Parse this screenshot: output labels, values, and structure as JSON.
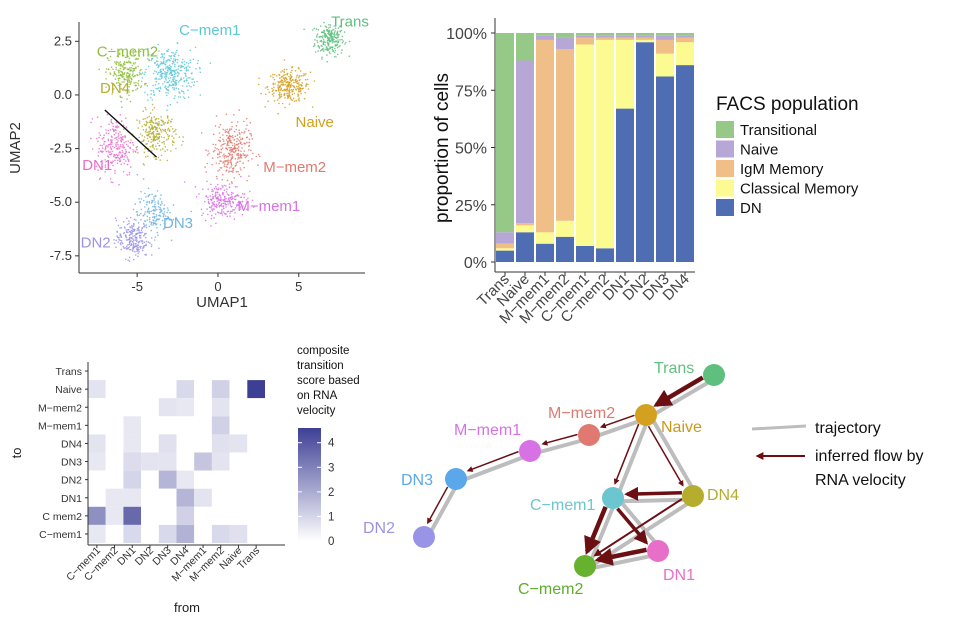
{
  "palette": {
    "transitional": "#96c987",
    "naive": "#b6a7d6",
    "igm_memory": "#f0bf87",
    "classical_memory": "#fbfb91",
    "dn": "#4e6db3",
    "arrow_dark": "#6b0f12",
    "trajectory_gray": "#bdbdbd",
    "heat_low": "#ffffff",
    "heat_high": "#3d3f95"
  },
  "chart_data": [
    {
      "type": "scatter",
      "xlabel": "UMAP1",
      "ylabel": "UMAP2",
      "xticks": [
        "-5",
        "0",
        "5"
      ],
      "yticks": [
        "2.5",
        "0.0",
        "-2.5",
        "-5.0",
        "-7.5"
      ],
      "xlim": [
        -8.6,
        9.1
      ],
      "ylim": [
        -8.3,
        3.4
      ],
      "clusters": [
        {
          "name": "Trans",
          "color": "#5fbf7f",
          "center": [
            6.9,
            2.6
          ],
          "spread": [
            0.9,
            0.8
          ],
          "n": 230
        },
        {
          "name": "Naive",
          "color": "#d4a020",
          "center": [
            4.4,
            0.4
          ],
          "spread": [
            1.3,
            0.75
          ],
          "n": 260
        },
        {
          "name": "C−mem1",
          "color": "#5bc8d8",
          "center": [
            -3.0,
            1.0
          ],
          "spread": [
            1.6,
            1.2
          ],
          "n": 330
        },
        {
          "name": "C−mem2",
          "color": "#8fbf3a",
          "center": [
            -5.7,
            1.0
          ],
          "spread": [
            1.1,
            1.0
          ],
          "n": 220
        },
        {
          "name": "DN4",
          "color": "#b5ad2e",
          "center": [
            -3.8,
            -1.8
          ],
          "spread": [
            1.2,
            1.0
          ],
          "n": 240
        },
        {
          "name": "M−mem2",
          "color": "#e07a70",
          "center": [
            0.8,
            -2.6
          ],
          "spread": [
            1.2,
            1.3
          ],
          "n": 290
        },
        {
          "name": "DN1",
          "color": "#e86fc9",
          "center": [
            -6.3,
            -2.4
          ],
          "spread": [
            1.2,
            1.4
          ],
          "n": 230
        },
        {
          "name": "M−mem1",
          "color": "#d772e5",
          "center": [
            0.3,
            -4.9
          ],
          "spread": [
            1.4,
            0.8
          ],
          "n": 230
        },
        {
          "name": "DN3",
          "color": "#6fb3e0",
          "center": [
            -4.0,
            -5.5
          ],
          "spread": [
            1.0,
            1.0
          ],
          "n": 160
        },
        {
          "name": "DN2",
          "color": "#9a94e6",
          "center": [
            -5.3,
            -6.7
          ],
          "spread": [
            1.0,
            0.9
          ],
          "n": 230
        }
      ],
      "labels": [
        {
          "text": "Trans",
          "color": "#5fbf7f",
          "at": [
            7.0,
            3.2
          ]
        },
        {
          "text": "C−mem2",
          "color": "#8fbf3a",
          "at": [
            -7.5,
            1.8
          ]
        },
        {
          "text": "C−mem1",
          "color": "#5bc8d8",
          "at": [
            -2.4,
            2.8
          ]
        },
        {
          "text": "DN4",
          "color": "#b5ad2e",
          "at": [
            -7.3,
            0.1
          ]
        },
        {
          "text": "Naive",
          "color": "#d4a020",
          "at": [
            4.8,
            -1.5
          ]
        },
        {
          "text": "DN1",
          "color": "#e86fc9",
          "at": [
            -8.4,
            -3.5
          ]
        },
        {
          "text": "M−mem2",
          "color": "#e07a70",
          "at": [
            2.8,
            -3.6
          ]
        },
        {
          "text": "M−mem1",
          "color": "#d772e5",
          "at": [
            1.2,
            -5.4
          ]
        },
        {
          "text": "DN3",
          "color": "#6fb3e0",
          "at": [
            -3.4,
            -6.2
          ]
        },
        {
          "text": "DN2",
          "color": "#9a94e6",
          "at": [
            -8.5,
            -7.1
          ]
        }
      ],
      "line": {
        "from": [
          -7.0,
          -0.7
        ],
        "to": [
          -3.8,
          -2.9
        ]
      }
    },
    {
      "type": "bar",
      "stacked": true,
      "ylabel": "proportion of cells",
      "yticks": [
        "0%",
        "25%",
        "50%",
        "75%",
        "100%"
      ],
      "ylim": [
        0,
        100
      ],
      "categories": [
        "Trans",
        "Naive",
        "M−mem1",
        "M−mem2",
        "C−mem1",
        "C−mem2",
        "DN1",
        "DN2",
        "DN3",
        "DN4"
      ],
      "legend_title": "FACS population",
      "legend_position": "right",
      "series": [
        {
          "name": "DN",
          "key": "dn",
          "values": [
            5,
            13,
            8,
            11,
            7,
            6,
            67,
            96,
            81,
            86
          ]
        },
        {
          "name": "Classical  Memory",
          "key": "classical_memory",
          "values": [
            1,
            3,
            5,
            7,
            88,
            91,
            30,
            1,
            10,
            10
          ]
        },
        {
          "name": "IgM  Memory",
          "key": "igm_memory",
          "values": [
            2,
            1,
            84,
            75,
            3,
            1,
            1,
            1,
            6,
            2
          ]
        },
        {
          "name": "Naive",
          "key": "naive",
          "values": [
            5,
            71,
            2,
            5,
            1,
            1,
            1,
            1,
            2,
            1
          ]
        },
        {
          "name": "Transitional",
          "key": "transitional",
          "values": [
            87,
            12,
            1,
            2,
            1,
            1,
            1,
            1,
            1,
            1
          ]
        }
      ],
      "legend_order": [
        "Transitional",
        "Naive",
        "IgM  Memory",
        "Classical  Memory",
        "DN"
      ]
    },
    {
      "type": "heatmap",
      "xlabel": "from",
      "ylabel": "to",
      "x": [
        "C−mem1",
        "C−mem2",
        "DN1",
        "DN2",
        "DN3",
        "DN4",
        "M−mem1",
        "M−mem2",
        "Naive",
        "Trans"
      ],
      "y": [
        "Trans",
        "Naive",
        "M−mem2",
        "M−mem1",
        "DN4",
        "DN3",
        "DN2",
        "DN1",
        "C  mem2",
        "C−mem1"
      ],
      "values": [
        [
          0,
          0,
          0,
          0,
          0,
          0,
          0,
          0,
          0,
          0
        ],
        [
          0.3,
          0,
          0,
          0,
          0,
          0.6,
          0,
          0.8,
          0,
          4.6
        ],
        [
          0,
          0,
          0,
          0,
          0.3,
          0.2,
          0,
          0.3,
          0,
          0
        ],
        [
          0,
          0,
          0.2,
          0,
          0,
          0,
          0,
          0.8,
          0,
          0
        ],
        [
          0.3,
          0,
          0.2,
          0,
          0.4,
          0,
          0,
          0.4,
          0.3,
          0
        ],
        [
          0.2,
          0,
          0.5,
          0.3,
          0.3,
          0,
          1.1,
          0.3,
          0,
          0
        ],
        [
          0,
          0,
          0.7,
          0,
          1.5,
          0.2,
          0,
          0,
          0,
          0
        ],
        [
          0,
          0.2,
          0.2,
          0,
          0,
          1.5,
          0.3,
          0,
          0,
          0
        ],
        [
          2.5,
          0.2,
          3.5,
          0,
          0,
          0.8,
          0,
          0,
          0,
          0
        ],
        [
          0.2,
          0,
          0.6,
          0,
          0.6,
          1.6,
          0,
          0.6,
          0.4,
          0
        ]
      ],
      "colorbar_title": [
        "composite",
        "transition",
        "score based",
        "on RNA",
        "velocity"
      ],
      "colorbar_ticks": [
        "4",
        "3",
        "2",
        "1",
        "0"
      ],
      "zlim": [
        0,
        4.6
      ]
    },
    {
      "type": "network",
      "nodes": [
        {
          "name": "Trans",
          "color": "#5fbf7f",
          "label_color": "#5fbf7f"
        },
        {
          "name": "Naive",
          "color": "#d4a020",
          "label_color": "#c99a1a"
        },
        {
          "name": "M−mem2",
          "color": "#e07a70",
          "label_color": "#e07a70"
        },
        {
          "name": "M−mem1",
          "color": "#d772e5",
          "label_color": "#d772e5"
        },
        {
          "name": "DN3",
          "color": "#5aa8ea",
          "label_color": "#5aa8ea"
        },
        {
          "name": "DN2",
          "color": "#9a94e6",
          "label_color": "#9a94e6"
        },
        {
          "name": "C−mem1",
          "color": "#6cc6cf",
          "label_color": "#6cc6cf"
        },
        {
          "name": "DN4",
          "color": "#b5ad2e",
          "label_color": "#b5ad2e"
        },
        {
          "name": "C−mem2",
          "color": "#66b22e",
          "label_color": "#5fae2a"
        },
        {
          "name": "DN1",
          "color": "#e86fc9",
          "label_color": "#e86fc9"
        }
      ],
      "edges": [
        {
          "from": "Trans",
          "to": "Naive",
          "weight": 4.5
        },
        {
          "from": "Naive",
          "to": "M−mem2",
          "weight": 1.5
        },
        {
          "from": "M−mem2",
          "to": "M−mem1",
          "weight": 1.5
        },
        {
          "from": "M−mem1",
          "to": "DN3",
          "weight": 1.5
        },
        {
          "from": "DN3",
          "to": "DN2",
          "weight": 1.5
        },
        {
          "from": "Naive",
          "to": "C−mem1",
          "weight": 1.5
        },
        {
          "from": "Naive",
          "to": "DN4",
          "weight": 1.5
        },
        {
          "from": "DN4",
          "to": "C−mem1",
          "weight": 3.5
        },
        {
          "from": "C−mem1",
          "to": "C−mem2",
          "weight": 4.5
        },
        {
          "from": "C−mem1",
          "to": "DN1",
          "weight": 3.5
        },
        {
          "from": "DN4",
          "to": "C−mem2",
          "weight": 2
        },
        {
          "from": "DN1",
          "to": "C−mem2",
          "weight": 4.5
        }
      ],
      "legend": {
        "trajectory": "trajectory",
        "flow": [
          "inferred flow by",
          "RNA velocity"
        ]
      }
    }
  ]
}
